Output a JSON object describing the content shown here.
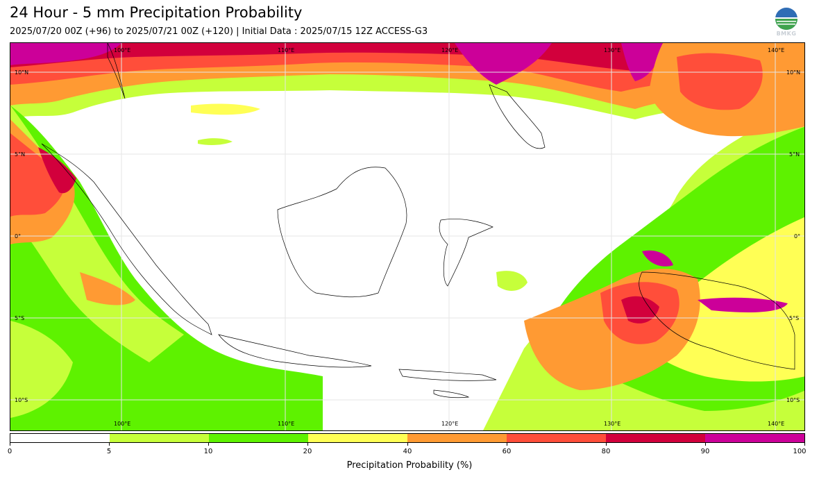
{
  "header": {
    "title": "24 Hour - 5 mm Precipitation Probability",
    "subtitle": "2025/07/20 00Z (+96) to 2025/07/21 00Z (+120) | Initial Data : 2025/07/15 12Z ACCESS-G3"
  },
  "logo": {
    "text": "BMKG",
    "icon": "bmkg-logo-icon"
  },
  "map": {
    "lon_labels": [
      "100°E",
      "110°E",
      "120°E",
      "130°E",
      "140°E"
    ],
    "lat_labels": [
      "10°N",
      "5°N",
      "0°",
      "5°S",
      "10°S"
    ],
    "gridlines": true
  },
  "colorbar": {
    "label": "Precipitation Probability (%)",
    "ticks": [
      "0",
      "5",
      "10",
      "20",
      "40",
      "60",
      "80",
      "90",
      "100"
    ],
    "colors": [
      "#ffffff",
      "#c6ff3a",
      "#5ef200",
      "#ffff55",
      "#ff9a33",
      "#ff4e3a",
      "#d2003c",
      "#cc0099"
    ]
  }
}
